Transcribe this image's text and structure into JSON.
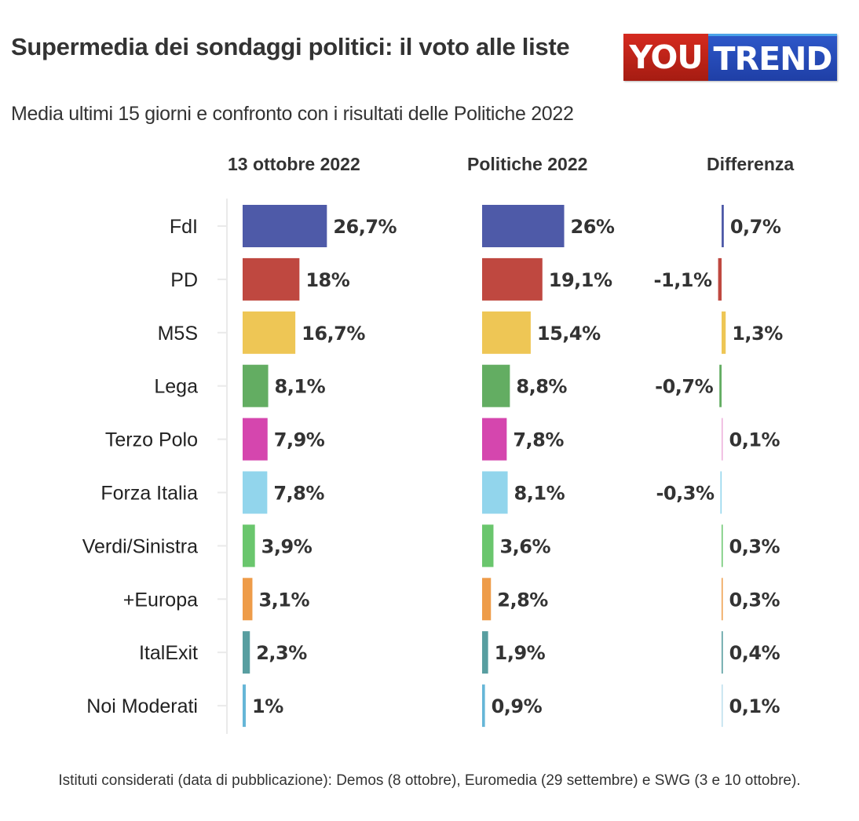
{
  "title": "Supermedia dei sondaggi politici: il voto alle liste",
  "subtitle": "Media ultimi 15 giorni e confronto con i risultati delle Politiche 2022",
  "logo": {
    "part1": "YOU",
    "part2": "TREND",
    "colors": [
      "#c0231a",
      "#2548b8"
    ]
  },
  "footer": "Istituti considerati (data di pubblicazione): Demos (8 ottobre), Euromedia (29 settembre) e SWG (3 e 10 ottobre).",
  "chart_data": {
    "type": "bar",
    "title": "Supermedia dei sondaggi politici: il voto alle liste",
    "subtitle": "Media ultimi 15 giorni e confronto con i risultati delle Politiche 2022",
    "categories": [
      "FdI",
      "PD",
      "M5S",
      "Lega",
      "Terzo Polo",
      "Forza Italia",
      "Verdi/Sinistra",
      "+Europa",
      "ItalExit",
      "Noi Moderati"
    ],
    "colors": [
      "#4e5aa8",
      "#bf4840",
      "#eec655",
      "#63ad62",
      "#d546ae",
      "#92d5ec",
      "#6ac66d",
      "#ee9c49",
      "#589ea0",
      "#66b6d7"
    ],
    "series": [
      {
        "name": "13 ottobre 2022",
        "values": [
          26.7,
          18,
          16.7,
          8.1,
          7.9,
          7.8,
          3.9,
          3.1,
          2.3,
          1
        ],
        "labels": [
          "26,7%",
          "18%",
          "16,7%",
          "8,1%",
          "7,9%",
          "7,8%",
          "3,9%",
          "3,1%",
          "2,3%",
          "1%"
        ]
      },
      {
        "name": "Politiche 2022",
        "values": [
          26,
          19.1,
          15.4,
          8.8,
          7.8,
          8.1,
          3.6,
          2.8,
          1.9,
          0.9
        ],
        "labels": [
          "26%",
          "19,1%",
          "15,4%",
          "8,8%",
          "7,8%",
          "8,1%",
          "3,6%",
          "2,8%",
          "1,9%",
          "0,9%"
        ]
      },
      {
        "name": "Differenza",
        "values": [
          0.7,
          -1.1,
          1.3,
          -0.7,
          0.1,
          -0.3,
          0.3,
          0.3,
          0.4,
          0.1
        ],
        "labels": [
          "0,7%",
          "-1,1%",
          "1,3%",
          "-0,7%",
          "0,1%",
          "-0,3%",
          "0,3%",
          "0,3%",
          "0,4%",
          "0,1%"
        ]
      }
    ],
    "xlabel": "",
    "ylabel": "",
    "grid": false
  }
}
